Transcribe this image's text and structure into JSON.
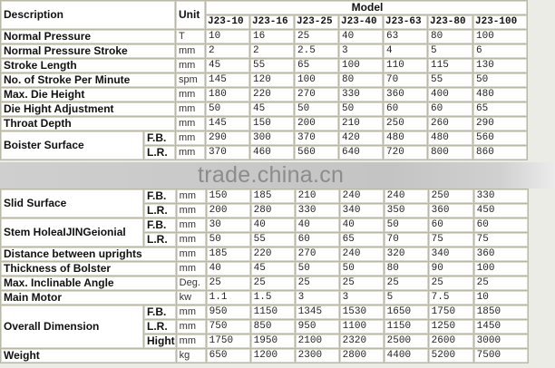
{
  "header": {
    "description": "Description",
    "unit": "Unit",
    "model": "Model"
  },
  "models": [
    "J23-10",
    "J23-16",
    "J23-25",
    "J23-40",
    "J23-63",
    "J23-80",
    "J23-100"
  ],
  "watermark": "trade.china.cn",
  "rows_top": [
    {
      "label": "Normal Pressure",
      "unit": "T",
      "values": [
        "10",
        "16",
        "25",
        "40",
        "63",
        "80",
        "100"
      ]
    },
    {
      "label": "Normal Pressure Stroke",
      "unit": "mm",
      "values": [
        "2",
        "2",
        "2.5",
        "3",
        "4",
        "5",
        "6"
      ]
    },
    {
      "label": "Stroke Length",
      "unit": "mm",
      "values": [
        "45",
        "55",
        "65",
        "100",
        "110",
        "115",
        "130"
      ]
    },
    {
      "label": "No. of Stroke Per Minute",
      "unit": "spm",
      "values": [
        "145",
        "120",
        "100",
        "80",
        "70",
        "55",
        "50"
      ]
    },
    {
      "label": "Max. Die Height",
      "unit": "mm",
      "values": [
        "180",
        "220",
        "270",
        "330",
        "360",
        "400",
        "480"
      ]
    },
    {
      "label": "Die Hight Adjustment",
      "unit": "mm",
      "values": [
        "50",
        "45",
        "50",
        "50",
        "60",
        "60",
        "65"
      ]
    },
    {
      "label": "Throat Depth",
      "unit": "mm",
      "values": [
        "145",
        "150",
        "200",
        "210",
        "250",
        "260",
        "290"
      ]
    },
    {
      "label": "Boister Surface",
      "sub": [
        {
          "label": "F.B.",
          "unit": "mm",
          "values": [
            "290",
            "300",
            "370",
            "420",
            "480",
            "480",
            "560"
          ]
        },
        {
          "label": "L.R.",
          "unit": "mm",
          "values": [
            "370",
            "460",
            "560",
            "640",
            "720",
            "800",
            "860"
          ]
        }
      ]
    }
  ],
  "rows_bottom": [
    {
      "label": "Slid Surface",
      "sub": [
        {
          "label": "F.B.",
          "unit": "mm",
          "values": [
            "150",
            "185",
            "210",
            "240",
            "240",
            "250",
            "330"
          ]
        },
        {
          "label": "L.R.",
          "unit": "mm",
          "values": [
            "200",
            "280",
            "330",
            "340",
            "350",
            "360",
            "450"
          ]
        }
      ]
    },
    {
      "label": "Stem HoleaIJINGeionial",
      "sub": [
        {
          "label": "F.B.",
          "unit": "mm",
          "values": [
            "30",
            "40",
            "40",
            "40",
            "50",
            "60",
            "60"
          ]
        },
        {
          "label": "L.R.",
          "unit": "mm",
          "values": [
            "50",
            "55",
            "60",
            "65",
            "70",
            "75",
            "75"
          ]
        }
      ]
    },
    {
      "label": "Distance between uprights",
      "unit": "mm",
      "values": [
        "185",
        "220",
        "270",
        "240",
        "320",
        "340",
        "360"
      ]
    },
    {
      "label": "Thickness of Bolster",
      "unit": "mm",
      "values": [
        "40",
        "45",
        "50",
        "50",
        "80",
        "90",
        "100"
      ]
    },
    {
      "label": "Max. Inclinable Angle",
      "unit": "Deg.",
      "values": [
        "25",
        "25",
        "25",
        "25",
        "25",
        "25",
        "25"
      ]
    },
    {
      "label": "Main Motor",
      "unit": "kw",
      "values": [
        "1.1",
        "1.5",
        "3",
        "3",
        "5",
        "7.5",
        "10"
      ]
    },
    {
      "label": "Overall Dimension",
      "sub": [
        {
          "label": "F.B.",
          "unit": "mm",
          "values": [
            "950",
            "1150",
            "1345",
            "1530",
            "1650",
            "1750",
            "1850"
          ]
        },
        {
          "label": "L.R.",
          "unit": "mm",
          "values": [
            "750",
            "850",
            "950",
            "1100",
            "1150",
            "1250",
            "1450"
          ]
        },
        {
          "label": "Hight",
          "unit": "mm",
          "values": [
            "1750",
            "1950",
            "2100",
            "2320",
            "2500",
            "2600",
            "3000"
          ]
        }
      ]
    },
    {
      "label": "Weight",
      "unit": "kg",
      "values": [
        "650",
        "1200",
        "2300",
        "2800",
        "4400",
        "5200",
        "7500"
      ]
    }
  ]
}
